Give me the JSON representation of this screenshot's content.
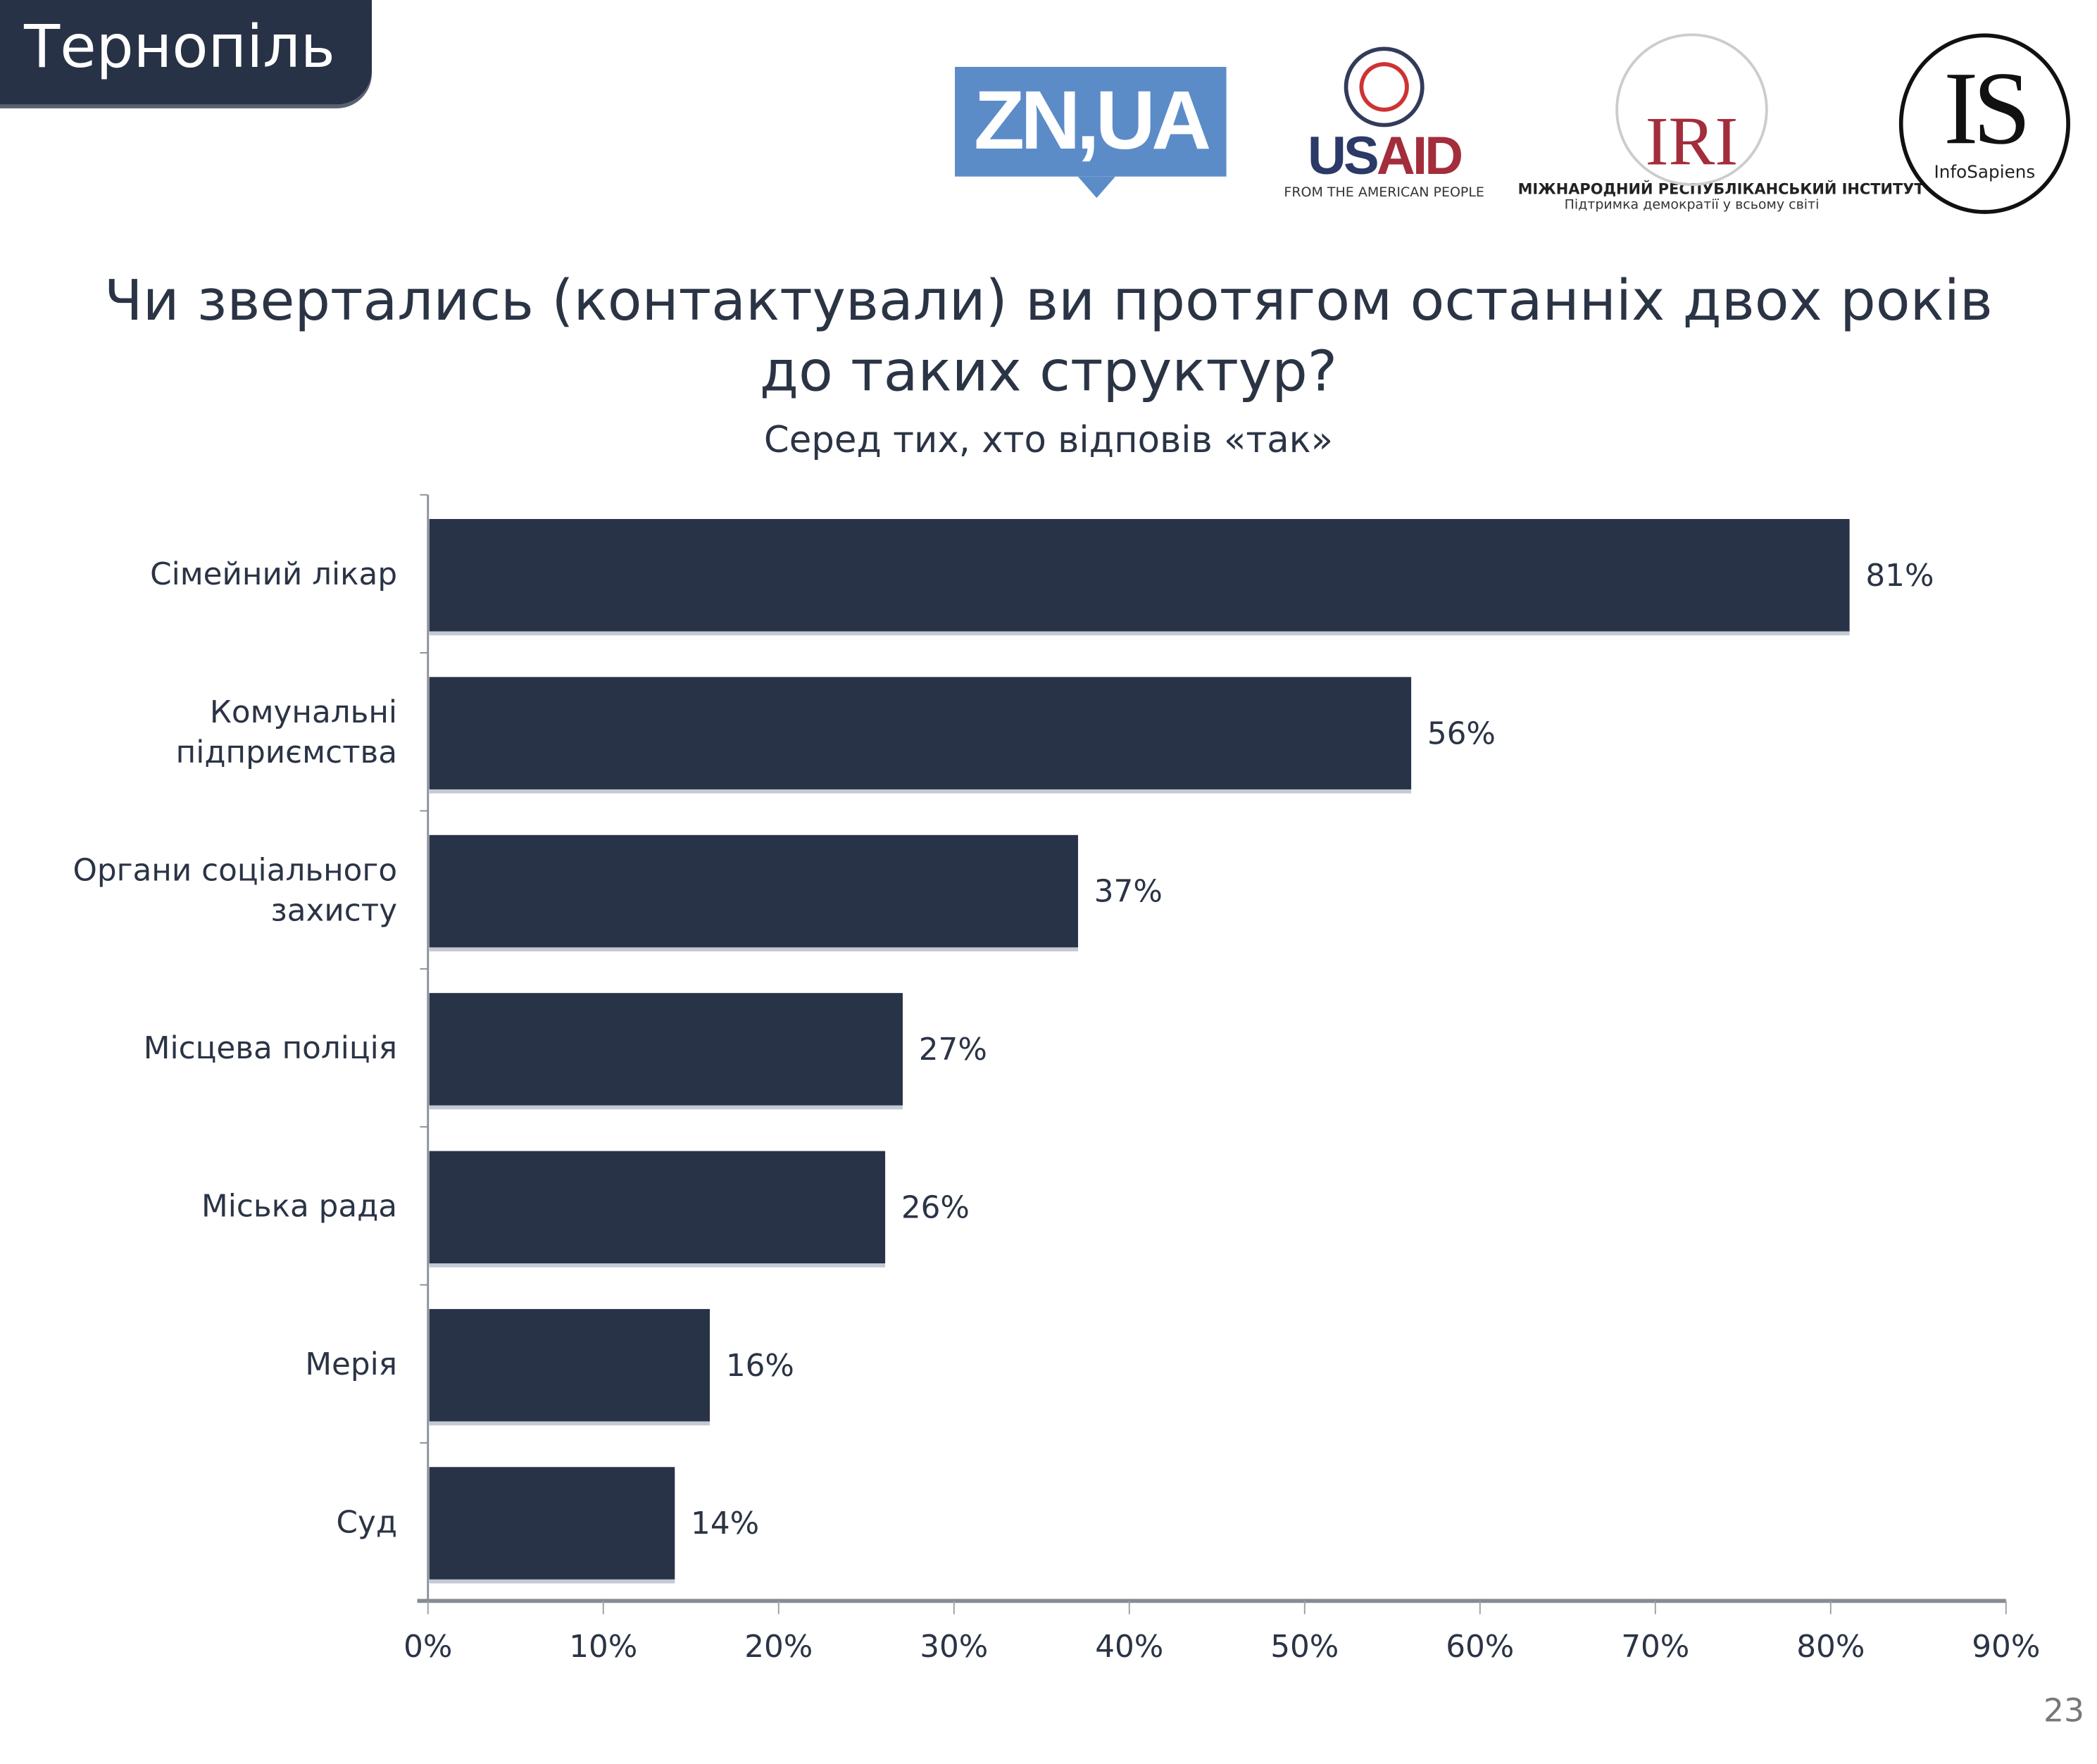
{
  "header": {
    "city": "Тернопіль",
    "page_number": "23"
  },
  "logos": {
    "zn": "ZN,UA",
    "usaid": {
      "word_us": "US",
      "word_aid": "AID",
      "tagline": "FROM THE AMERICAN PEOPLE"
    },
    "iri": {
      "word": "IRI",
      "line1": "МІЖНАРОДНИЙ РЕСПУБЛІКАНСЬКИЙ ІНСТИТУТ",
      "line2": "Підтримка демократії у всьому світі"
    },
    "infosapiens": {
      "word": "IS",
      "name": "InfoSapiens"
    }
  },
  "chart_data": {
    "type": "bar",
    "orientation": "horizontal",
    "title_line1": "Чи звертались (контактували) ви протягом останніх двох років",
    "title_line2": "до таких структур?",
    "subtitle": "Серед тих, хто відповів «так»",
    "categories": [
      [
        "Сімейний лікар"
      ],
      [
        "Комунальні",
        "підприємства"
      ],
      [
        "Органи соціального",
        "захисту"
      ],
      [
        "Місцева поліція"
      ],
      [
        "Міська рада"
      ],
      [
        "Мерія"
      ],
      [
        "Суд"
      ]
    ],
    "values": [
      81,
      56,
      37,
      27,
      26,
      16,
      14
    ],
    "value_labels": [
      "81%",
      "56%",
      "37%",
      "27%",
      "26%",
      "16%",
      "14%"
    ],
    "xlim": [
      0,
      90
    ],
    "xticks": [
      "0%",
      "10%",
      "20%",
      "30%",
      "40%",
      "50%",
      "60%",
      "70%",
      "80%",
      "90%"
    ],
    "grid": false,
    "bar_color": "#283347"
  }
}
